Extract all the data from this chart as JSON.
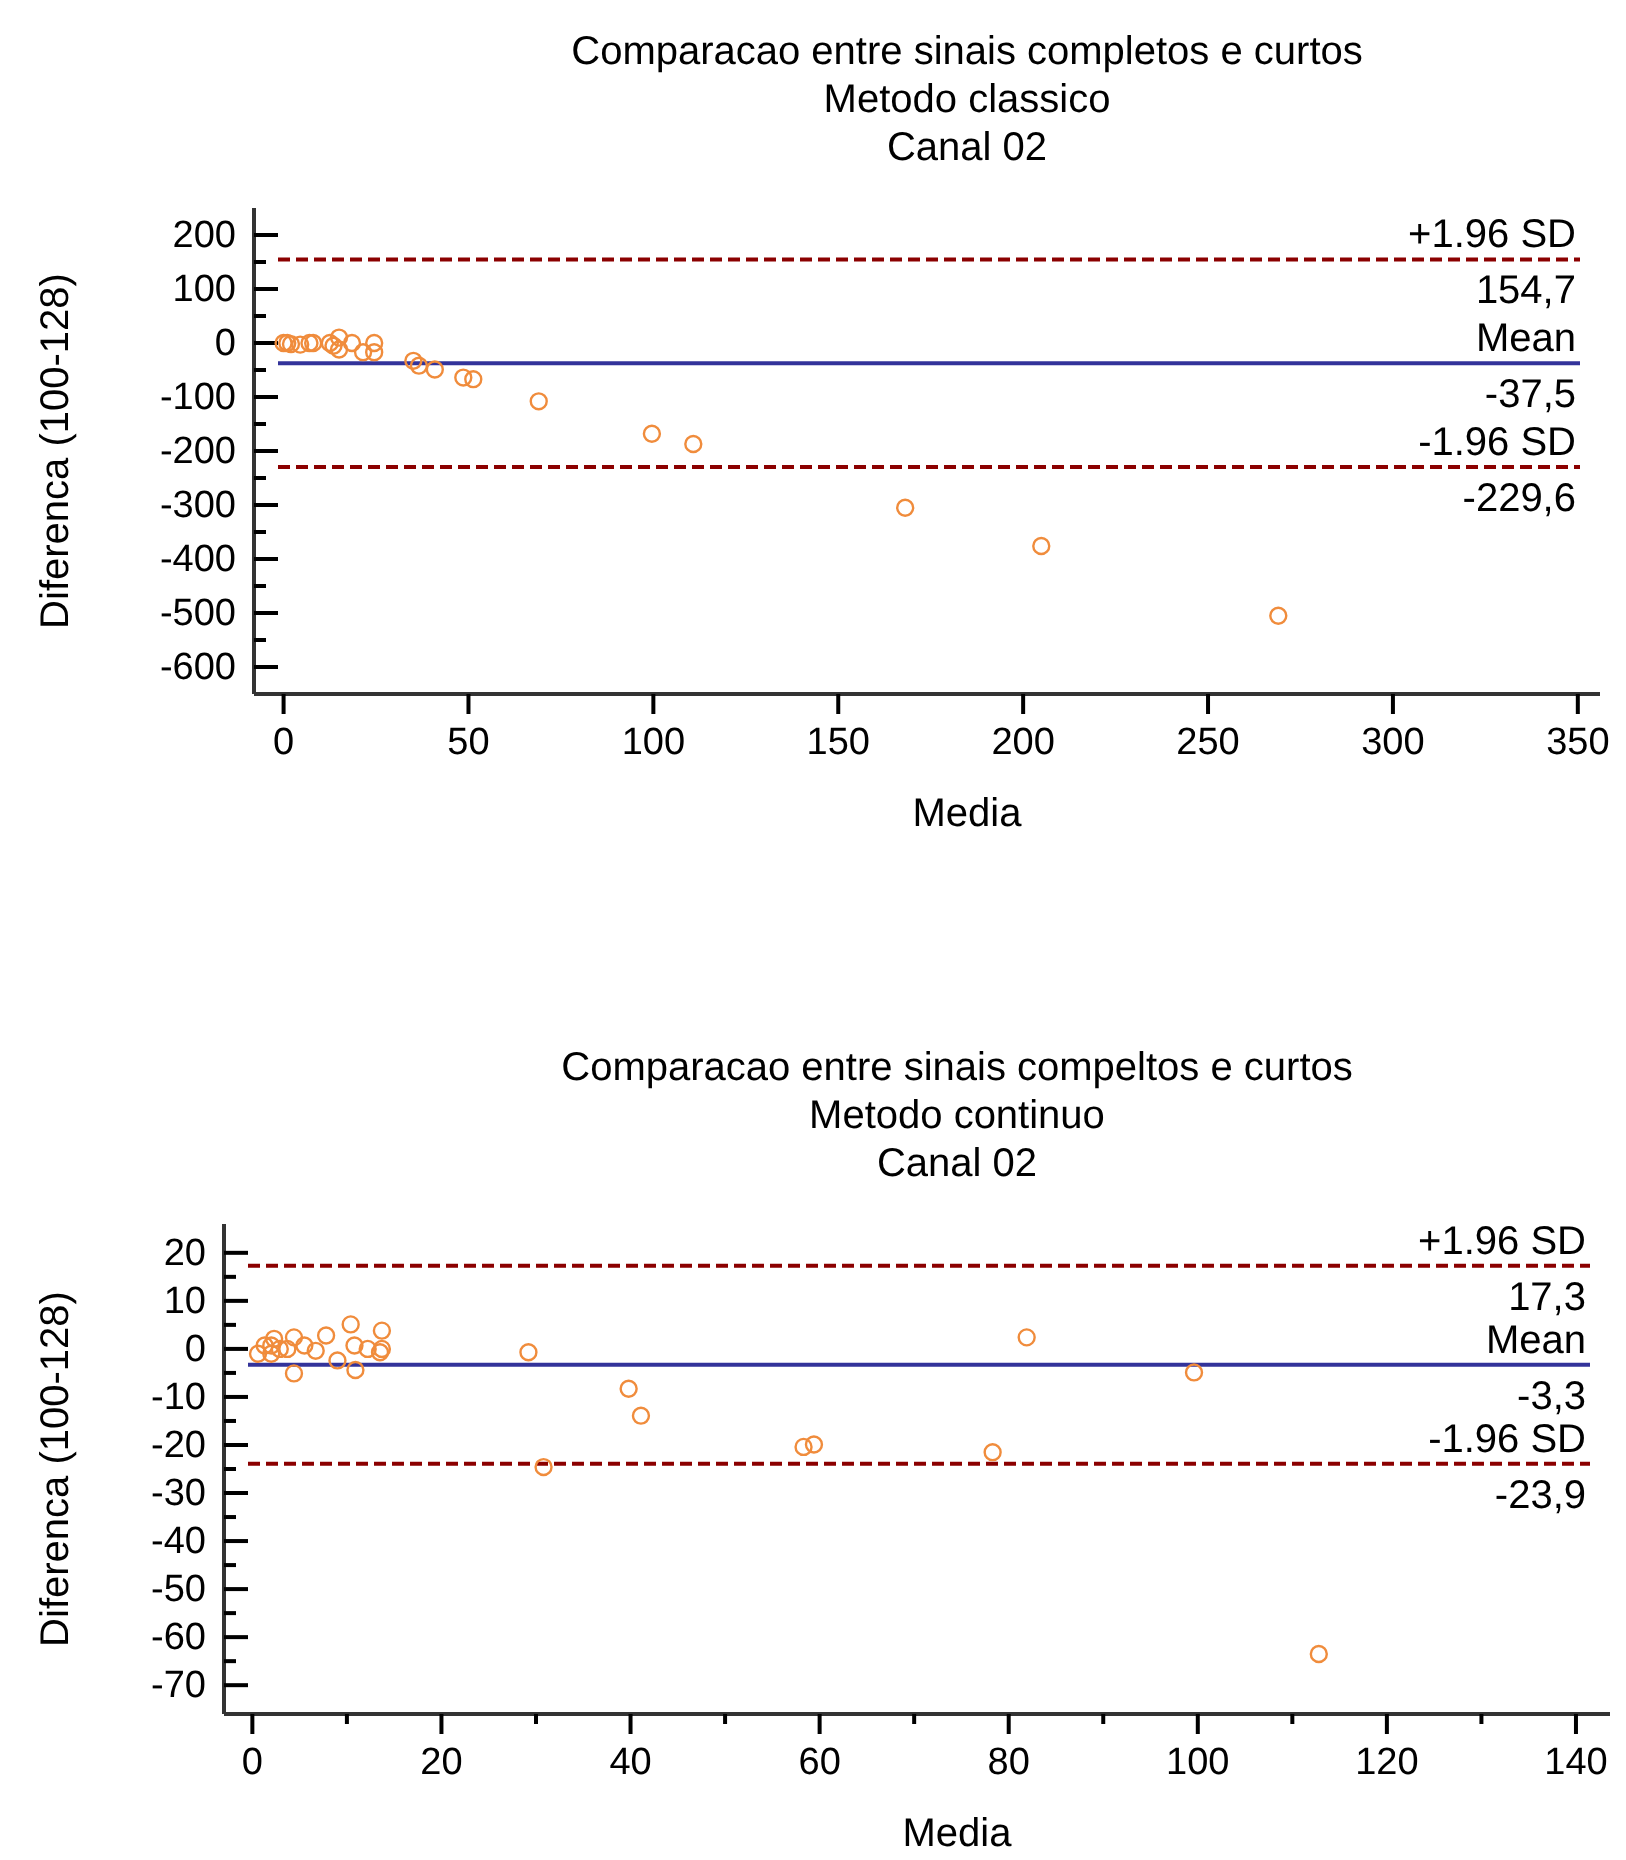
{
  "chart_data": [
    {
      "type": "scatter",
      "title": "Comparacao entre sinais completos e curtos",
      "subtitle": "Metodo classico\nCanal 02",
      "xlabel": "Media",
      "ylabel": "Diferenca (100-128)",
      "marker": "circle",
      "grid": false,
      "xlim": [
        -8,
        356
      ],
      "xticks": [
        0,
        50,
        100,
        150,
        200,
        250,
        300,
        350
      ],
      "ylim": [
        -650,
        250
      ],
      "yticks": [
        200,
        {
          "value": 150,
          "label": null
        },
        100,
        {
          "value": 50,
          "label": null
        },
        0,
        {
          "value": -50,
          "label": null
        },
        -100,
        {
          "value": -150,
          "label": null
        },
        -200,
        {
          "value": -250,
          "label": null
        },
        -300,
        {
          "value": -350,
          "label": null
        },
        -400,
        {
          "value": -450,
          "label": null
        },
        -500,
        {
          "value": -550,
          "label": null
        },
        -600
      ],
      "series": [
        {
          "color": "#f08c3c",
          "x": [
            0,
            1,
            2,
            4.5,
            7,
            8,
            12.5,
            13.5,
            15,
            15,
            18.5,
            21.5,
            24.5,
            24.5,
            35.1,
            36.6,
            40.9,
            48.6,
            51.3,
            69,
            99.6,
            110.8,
            168.1,
            204.9,
            269
          ],
          "values": [
            0,
            0,
            -2,
            -3,
            0,
            0,
            0,
            -5,
            10,
            -12,
            0,
            -17,
            0,
            -17,
            -33,
            -42,
            -49,
            -64,
            -67,
            -108,
            -168,
            -187,
            -305,
            -376,
            -505
          ]
        }
      ],
      "ref_lines": [
        {
          "axis": "y",
          "value": 154.7,
          "label": "+1.96 SD",
          "color": "#8b0000",
          "line_style": "dashed"
        },
        {
          "axis": "y",
          "value": -37.5,
          "label": "Mean",
          "color": "#33339a",
          "line_style": "solid"
        },
        {
          "axis": "y",
          "value": -229.6,
          "label": "-1.96 SD",
          "color": "#8b0000",
          "line_style": "dashed"
        }
      ],
      "annotations": [
        {
          "text": "154,7",
          "y": 154.7
        },
        {
          "text": "-37,5",
          "y": -37.5
        },
        {
          "text": "-229,6",
          "y": -229.6
        }
      ]
    },
    {
      "type": "scatter",
      "title": "Comparacao entre sinais compeltos e curtos",
      "subtitle": "Metodo continuo\nCanal 02",
      "xlabel": "Media",
      "ylabel": "Diferenca (100-128)",
      "marker": "circle",
      "grid": false,
      "xlim": [
        -3,
        143.6
      ],
      "xticks": [
        0,
        {
          "value": 10,
          "label": null
        },
        20,
        {
          "value": 30,
          "label": null
        },
        40,
        {
          "value": 50,
          "label": null
        },
        60,
        {
          "value": 70,
          "label": null
        },
        80,
        {
          "value": 90,
          "label": null
        },
        100,
        {
          "value": 110,
          "label": null
        },
        120,
        {
          "value": 130,
          "label": null
        },
        140
      ],
      "ylim": [
        -76,
        26
      ],
      "yticks": [
        20,
        {
          "value": 15,
          "label": null
        },
        10,
        {
          "value": 5,
          "label": null
        },
        0,
        {
          "value": -5,
          "label": null
        },
        -10,
        {
          "value": -15,
          "label": null
        },
        -20,
        {
          "value": -25,
          "label": null
        },
        -30,
        {
          "value": -35,
          "label": null
        },
        -40,
        {
          "value": -45,
          "label": null
        },
        -50,
        {
          "value": -55,
          "label": null
        },
        -60,
        {
          "value": -65,
          "label": null
        },
        -70
      ],
      "series": [
        {
          "color": "#f08c3c",
          "x": [
            0.6,
            1.3,
            2,
            2.3,
            2,
            2.9,
            3.7,
            4.4,
            4.4,
            5.5,
            6.7,
            7.8,
            9,
            10.4,
            10.8,
            10.9,
            12.2,
            13.5,
            13.7,
            13.7,
            29.2,
            30.8,
            39.8,
            41.1,
            58.3,
            59.4,
            78.3,
            81.9,
            99.6,
            112.8
          ],
          "values": [
            -1,
            0.7,
            0.7,
            2.1,
            -1,
            0,
            0,
            2.4,
            -5.1,
            0.7,
            -0.4,
            2.8,
            -2.4,
            5.1,
            0.7,
            -4.4,
            0,
            -0.7,
            3.8,
            0,
            -0.7,
            -24.6,
            -8.3,
            -13.9,
            -20.4,
            -19.9,
            -21.5,
            2.4,
            -4.9,
            -63.5
          ]
        }
      ],
      "ref_lines": [
        {
          "axis": "y",
          "value": 17.3,
          "label": "+1.96 SD",
          "color": "#8b0000",
          "line_style": "dashed"
        },
        {
          "axis": "y",
          "value": -3.3,
          "label": "Mean",
          "color": "#33339a",
          "line_style": "solid"
        },
        {
          "axis": "y",
          "value": -23.9,
          "label": "-1.96 SD",
          "color": "#8b0000",
          "line_style": "dashed"
        }
      ],
      "annotations": [
        {
          "text": "17,3",
          "y": 17.3
        },
        {
          "text": "-3,3",
          "y": -3.3
        },
        {
          "text": "-23,9",
          "y": -23.9
        }
      ]
    }
  ]
}
